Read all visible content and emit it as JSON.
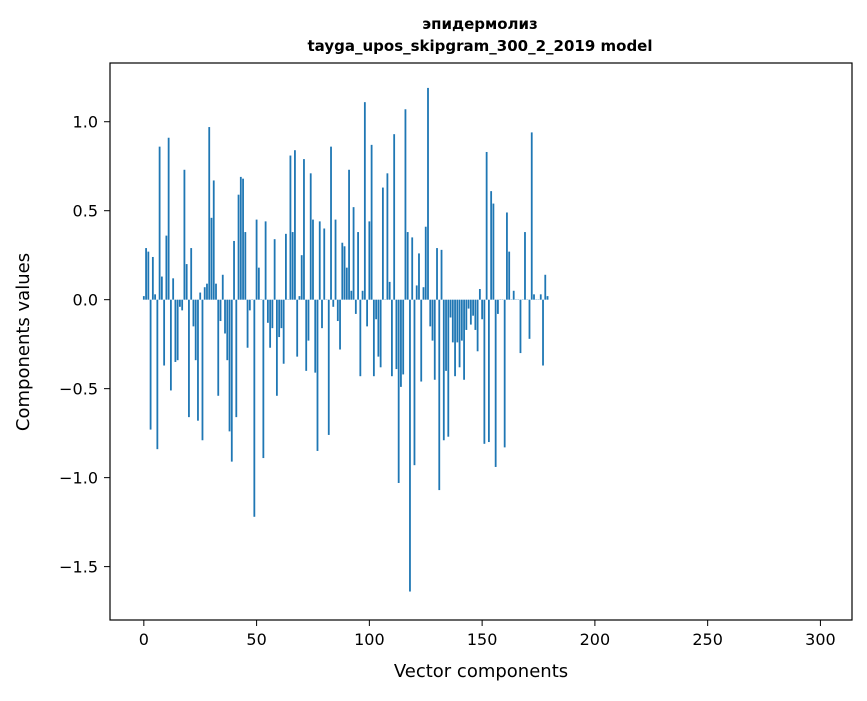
{
  "chart_data": {
    "type": "bar",
    "title_lines": [
      "эпидермолиз",
      "tayga_upos_skipgram_300_2_2019 model"
    ],
    "xlabel": "Vector components",
    "ylabel": "Components values",
    "xlim": [
      -15,
      314
    ],
    "ylim": [
      -1.8,
      1.33
    ],
    "xticks": [
      0,
      50,
      100,
      150,
      200,
      250,
      300
    ],
    "xtick_labels": [
      "0",
      "50",
      "100",
      "150",
      "200",
      "250",
      "300"
    ],
    "yticks": [
      -1.5,
      -1.0,
      -0.5,
      0.0,
      0.5,
      1.0
    ],
    "ytick_labels": [
      "−1.5",
      "−1.0",
      "−0.5",
      "0.0",
      "0.5",
      "1.0"
    ],
    "bar_color": "#1f77b4",
    "values": [
      0.02,
      0.29,
      0.27,
      -0.73,
      0.24,
      0.03,
      -0.84,
      0.86,
      0.13,
      -0.37,
      0.36,
      0.91,
      -0.51,
      0.12,
      -0.35,
      -0.34,
      -0.04,
      -0.06,
      0.73,
      0.2,
      -0.66,
      0.29,
      -0.15,
      -0.34,
      -0.68,
      0.04,
      -0.79,
      0.07,
      0.09,
      0.97,
      0.46,
      0.67,
      0.09,
      -0.54,
      -0.12,
      0.14,
      -0.19,
      -0.34,
      -0.74,
      -0.91,
      0.33,
      -0.66,
      0.59,
      0.69,
      0.68,
      0.38,
      -0.27,
      -0.06,
      0.0,
      -1.22,
      0.45,
      0.18,
      0.0,
      -0.89,
      0.44,
      -0.13,
      -0.27,
      -0.16,
      0.34,
      -0.54,
      -0.21,
      -0.16,
      -0.36,
      0.37,
      0.0,
      0.81,
      0.38,
      0.84,
      -0.32,
      0.02,
      0.25,
      0.79,
      -0.4,
      -0.23,
      0.71,
      0.45,
      -0.41,
      -0.85,
      0.44,
      -0.16,
      0.4,
      0.0,
      -0.76,
      0.86,
      -0.04,
      0.45,
      -0.12,
      -0.28,
      0.32,
      0.3,
      0.18,
      0.73,
      0.05,
      0.52,
      -0.08,
      0.38,
      -0.43,
      0.05,
      1.11,
      -0.15,
      0.44,
      0.87,
      -0.43,
      -0.11,
      -0.32,
      -0.38,
      0.63,
      0.0,
      0.71,
      0.1,
      -0.43,
      0.93,
      -0.39,
      -1.03,
      -0.49,
      -0.42,
      1.07,
      0.38,
      -1.64,
      0.35,
      -0.93,
      0.08,
      0.26,
      -0.46,
      0.07,
      0.41,
      1.19,
      -0.15,
      -0.23,
      -0.45,
      0.29,
      -1.07,
      0.28,
      -0.79,
      -0.4,
      -0.77,
      -0.1,
      -0.24,
      -0.43,
      -0.24,
      -0.38,
      -0.23,
      -0.45,
      -0.17,
      -0.05,
      -0.14,
      -0.09,
      -0.17,
      -0.29,
      0.06,
      -0.11,
      -0.81,
      0.83,
      -0.8,
      0.61,
      0.54,
      -0.94,
      -0.08,
      0.0,
      0.0,
      -0.83,
      0.49,
      0.27,
      0.0,
      0.05,
      0.0,
      0.0,
      -0.3,
      0.0,
      0.38,
      0.0,
      -0.22,
      0.94,
      0.03,
      0.0,
      0.0,
      0.03,
      -0.37,
      0.14,
      0.02
    ]
  }
}
